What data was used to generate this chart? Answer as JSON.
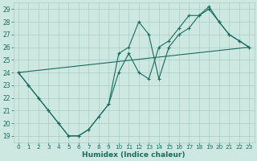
{
  "xlabel": "Humidex (Indice chaleur)",
  "xlim": [
    -0.5,
    23.5
  ],
  "ylim": [
    18.5,
    29.5
  ],
  "xticks": [
    0,
    1,
    2,
    3,
    4,
    5,
    6,
    7,
    8,
    9,
    10,
    11,
    12,
    13,
    14,
    15,
    16,
    17,
    18,
    19,
    20,
    21,
    22,
    23
  ],
  "yticks": [
    19,
    20,
    21,
    22,
    23,
    24,
    25,
    26,
    27,
    28,
    29
  ],
  "bg_color": "#cce8e0",
  "grid_color": "#aaccc4",
  "line_color": "#1a6b60",
  "line1_x": [
    0,
    1,
    2,
    3,
    4,
    5,
    6,
    7,
    8,
    9,
    10,
    11,
    12,
    13,
    14,
    15,
    16,
    17,
    18,
    19,
    20,
    21,
    22,
    23
  ],
  "line1_y": [
    24,
    23,
    22,
    21,
    20,
    19,
    19,
    19.5,
    20.5,
    21.5,
    24,
    25.5,
    24,
    23.5,
    26,
    26.5,
    27.5,
    28.5,
    28.5,
    29,
    28,
    27,
    26.5,
    26
  ],
  "line2_x": [
    0,
    1,
    2,
    3,
    4,
    5,
    6,
    7,
    9,
    10,
    11,
    12,
    13,
    14,
    15,
    16,
    17,
    18,
    19,
    20,
    21,
    22,
    23
  ],
  "line2_y": [
    24,
    23,
    22,
    21,
    20,
    19,
    19,
    19.5,
    21.5,
    25.5,
    26,
    28,
    27,
    23.5,
    26,
    27,
    27.5,
    28.5,
    29.2,
    28,
    27,
    26.5,
    26
  ],
  "line3_x": [
    0,
    23
  ],
  "line3_y": [
    24,
    26
  ]
}
